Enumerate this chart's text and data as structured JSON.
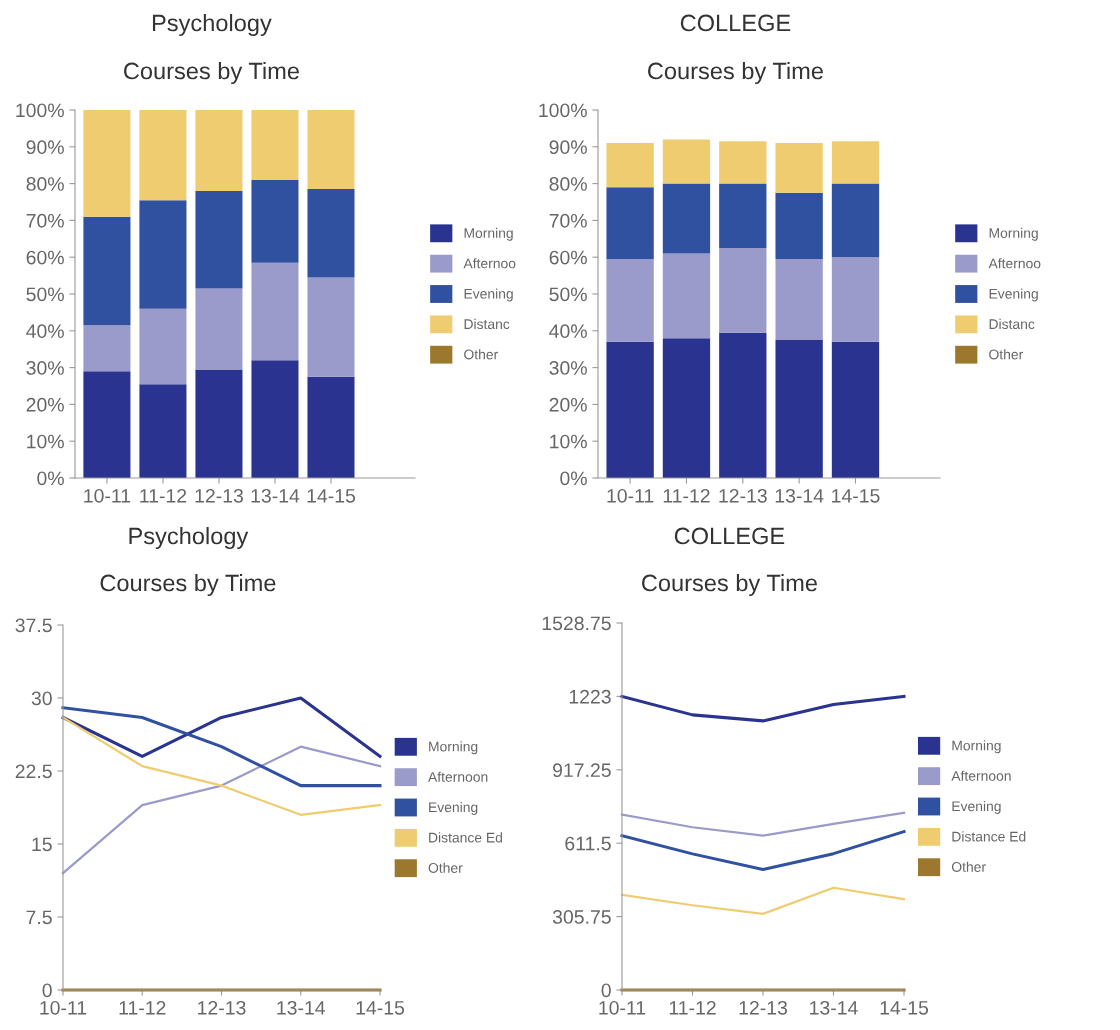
{
  "chart_data": [
    {
      "type": "bar",
      "stacked": true,
      "title": "Psychology",
      "subtitle": "Courses by Time",
      "categories": [
        "10-11",
        "11-12",
        "12-13",
        "13-14",
        "14-15"
      ],
      "ylim": [
        0,
        100
      ],
      "yticks": [
        {
          "value": 0,
          "label": "0%"
        },
        {
          "value": 10,
          "label": "10%"
        },
        {
          "value": 20,
          "label": "20%"
        },
        {
          "value": 30,
          "label": "30%"
        },
        {
          "value": 40,
          "label": "40%"
        },
        {
          "value": 50,
          "label": "50%"
        },
        {
          "value": 60,
          "label": "60%"
        },
        {
          "value": 70,
          "label": "70%"
        },
        {
          "value": 80,
          "label": "80%"
        },
        {
          "value": 90,
          "label": "90%"
        },
        {
          "value": 100,
          "label": "100%"
        }
      ],
      "grid": false,
      "legend": "right",
      "series": [
        {
          "name": "Morning",
          "color": "#2a3390",
          "values": [
            29,
            25.5,
            29.5,
            32,
            27.5
          ]
        },
        {
          "name": "Afternoo",
          "color": "#9a9acb",
          "values": [
            12.5,
            20.5,
            22,
            26.5,
            27
          ]
        },
        {
          "name": "Evening",
          "color": "#3050a0",
          "values": [
            29.5,
            29.5,
            26.5,
            22.5,
            24
          ]
        },
        {
          "name": "Distanc",
          "color": "#f0cc70",
          "values": [
            29,
            24.5,
            22,
            19,
            21.5
          ]
        },
        {
          "name": "Other",
          "color": "#9b782e",
          "values": [
            0,
            0,
            0,
            0,
            0
          ]
        }
      ]
    },
    {
      "type": "bar",
      "stacked": true,
      "title": "COLLEGE",
      "subtitle": "Courses by Time",
      "categories": [
        "10-11",
        "11-12",
        "12-13",
        "13-14",
        "14-15"
      ],
      "ylim": [
        0,
        100
      ],
      "yticks": [
        {
          "value": 0,
          "label": "0%"
        },
        {
          "value": 10,
          "label": "10%"
        },
        {
          "value": 20,
          "label": "20%"
        },
        {
          "value": 30,
          "label": "30%"
        },
        {
          "value": 40,
          "label": "40%"
        },
        {
          "value": 50,
          "label": "50%"
        },
        {
          "value": 60,
          "label": "60%"
        },
        {
          "value": 70,
          "label": "70%"
        },
        {
          "value": 80,
          "label": "80%"
        },
        {
          "value": 90,
          "label": "90%"
        },
        {
          "value": 100,
          "label": "100%"
        }
      ],
      "grid": false,
      "legend": "right",
      "series": [
        {
          "name": "Morning",
          "color": "#2a3390",
          "values": [
            37,
            38,
            39.5,
            37.5,
            37
          ]
        },
        {
          "name": "Afternoo",
          "color": "#9a9acb",
          "values": [
            22.5,
            23,
            23,
            22,
            23
          ]
        },
        {
          "name": "Evening",
          "color": "#3050a0",
          "values": [
            19.5,
            19,
            17.5,
            18,
            20
          ]
        },
        {
          "name": "Distanc",
          "color": "#f0cc70",
          "values": [
            12,
            12,
            11.5,
            13.5,
            11.5
          ]
        },
        {
          "name": "Other",
          "color": "#9b782e",
          "values": [
            0,
            0,
            0,
            0,
            0
          ]
        }
      ]
    },
    {
      "type": "line",
      "title": "Psychology",
      "subtitle": "Courses by Time",
      "categories": [
        "10-11",
        "11-12",
        "12-13",
        "13-14",
        "14-15"
      ],
      "ylim": [
        0,
        37.5
      ],
      "yticks": [
        0,
        7.5,
        15,
        22.5,
        30,
        37.5
      ],
      "grid": false,
      "legend": "right",
      "marker": "none",
      "line_style": "solid",
      "series": [
        {
          "name": "Morning",
          "color": "#2a3390",
          "values": [
            28,
            24,
            28,
            30,
            24
          ]
        },
        {
          "name": "Afternoon",
          "color": "#9a9acb",
          "values": [
            12,
            19,
            21,
            25,
            23
          ]
        },
        {
          "name": "Evening",
          "color": "#3050a0",
          "values": [
            29,
            28,
            25,
            21,
            21
          ]
        },
        {
          "name": "Distance Ed",
          "color": "#f0cc70",
          "values": [
            28,
            23,
            21,
            18,
            19
          ]
        },
        {
          "name": "Other",
          "color": "#9b782e",
          "values": [
            0,
            0,
            0,
            0,
            0
          ]
        }
      ]
    },
    {
      "type": "line",
      "title": "COLLEGE",
      "subtitle": "Courses by Time",
      "categories": [
        "10-11",
        "11-12",
        "12-13",
        "13-14",
        "14-15"
      ],
      "ylim": [
        0,
        1528.75
      ],
      "yticks": [
        0,
        305.75,
        611.5,
        917.25,
        1223,
        1528.75
      ],
      "grid": false,
      "legend": "right",
      "marker": "none",
      "line_style": "solid",
      "series": [
        {
          "name": "Morning",
          "color": "#2a3390",
          "values": [
            1223,
            1146,
            1121,
            1189,
            1223
          ]
        },
        {
          "name": "Afternoon",
          "color": "#9a9acb",
          "values": [
            731,
            678,
            643,
            692,
            738
          ]
        },
        {
          "name": "Evening",
          "color": "#3050a0",
          "values": [
            643,
            567,
            502,
            568,
            660
          ]
        },
        {
          "name": "Distance Ed",
          "color": "#f0cc70",
          "values": [
            396,
            353,
            317,
            426,
            378
          ]
        },
        {
          "name": "Other",
          "color": "#9b782e",
          "values": [
            0,
            0,
            0,
            0,
            0
          ]
        }
      ]
    }
  ]
}
